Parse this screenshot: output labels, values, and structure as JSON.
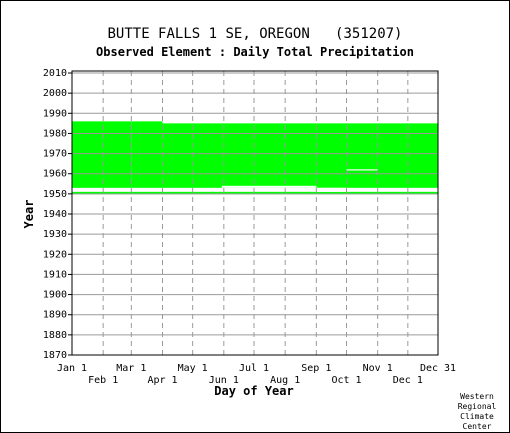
{
  "chart_data": {
    "type": "heatmap",
    "title": "BUTTE FALLS 1 SE, OREGON   (351207)",
    "subtitle": "Observed Element : Daily Total Precipitation",
    "xlabel": "Day of Year",
    "ylabel": "Year",
    "xlim": [
      1,
      365
    ],
    "ylim": [
      1870,
      2011
    ],
    "y_ticks": [
      1870,
      1880,
      1890,
      1900,
      1910,
      1920,
      1930,
      1940,
      1950,
      1960,
      1970,
      1980,
      1990,
      2000,
      2010
    ],
    "x_ticks_upper": [
      {
        "label": "Jan 1",
        "day": 1
      },
      {
        "label": "Mar 1",
        "day": 60
      },
      {
        "label": "May 1",
        "day": 121
      },
      {
        "label": "Jul 1",
        "day": 182
      },
      {
        "label": "Sep 1",
        "day": 244
      },
      {
        "label": "Nov 1",
        "day": 305
      },
      {
        "label": "Dec 31",
        "day": 365
      }
    ],
    "x_ticks_lower": [
      {
        "label": "Feb 1",
        "day": 32
      },
      {
        "label": "Apr 1",
        "day": 91
      },
      {
        "label": "Jun 1",
        "day": 152
      },
      {
        "label": "Aug 1",
        "day": 213
      },
      {
        "label": "Oct 1",
        "day": 274
      },
      {
        "label": "Dec 1",
        "day": 335
      }
    ],
    "grid": true,
    "data_color": "#00ff00",
    "gap_color": "#ffffff",
    "data_blocks": [
      {
        "day_start": 1,
        "day_end": 60,
        "year_start": 1953,
        "year_end": 1986
      },
      {
        "day_start": 60,
        "day_end": 91,
        "year_start": 1953,
        "year_end": 1986
      },
      {
        "day_start": 91,
        "day_end": 365,
        "year_start": 1953,
        "year_end": 1985
      },
      {
        "day_start": 1,
        "day_end": 365,
        "year_start": 1949.8,
        "year_end": 1951
      }
    ],
    "gaps": [
      {
        "day_start": 150,
        "day_end": 244,
        "year_start": 1953,
        "year_end": 1954
      },
      {
        "day_start": 244,
        "day_end": 274,
        "year_start": 1951,
        "year_end": 1953
      },
      {
        "day_start": 274,
        "day_end": 305,
        "year_start": 1961.6,
        "year_end": 1962.2
      }
    ]
  },
  "credit": [
    "Western",
    "Regional",
    "Climate",
    "Center"
  ]
}
